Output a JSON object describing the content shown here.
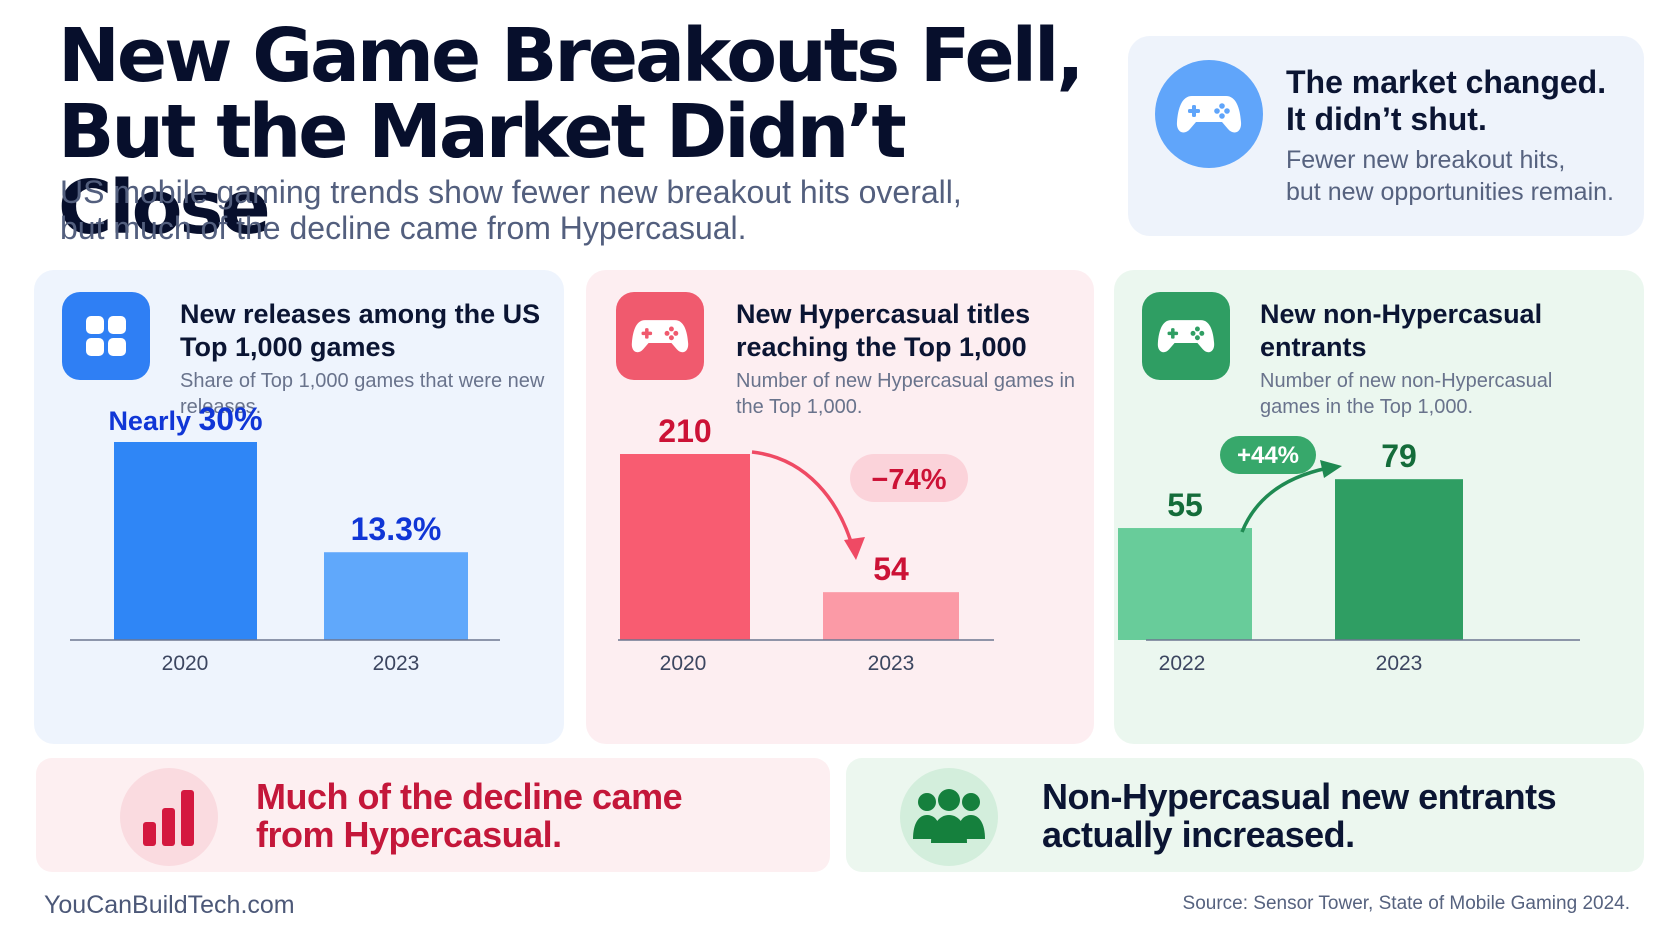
{
  "header": {
    "title_line1": "New Game Breakouts Fell,",
    "title_line2": "But the Market Didn’t Close",
    "subtitle_line1": "US mobile gaming trends show fewer new breakout hits overall,",
    "subtitle_line2": "but much of the decline came from Hypercasual."
  },
  "callout": {
    "icon": "gamepad-icon",
    "headline_line1": "The market changed.",
    "headline_line2": "It didn’t shut.",
    "text_line1": "Fewer new breakout hits,",
    "text_line2": "but new opportunities remain."
  },
  "cards": [
    {
      "icon": "grid-apps-icon",
      "title": "New releases among the US Top 1,000 games",
      "description": "Share of Top 1,000 games that were new releases."
    },
    {
      "icon": "gamepad-icon",
      "title": "New Hypercasual titles reaching the Top 1,000",
      "description": "Number of new Hypercasual games in the Top 1,000."
    },
    {
      "icon": "gamepad-icon",
      "title": "New non-Hypercasual entrants",
      "description": "Number of new non-Hypercasual games in the Top 1,000."
    }
  ],
  "chart_data": [
    {
      "type": "bar",
      "categories": [
        "2020",
        "2023"
      ],
      "values": [
        30,
        13.3
      ],
      "data_labels": [
        "Nearly 30%",
        "13.3%"
      ],
      "ylim": [
        0,
        30
      ],
      "colors": [
        "#2f86f6",
        "#60a8fb"
      ],
      "label_color": "#1036d6",
      "title": "New releases among the US Top 1,000 games",
      "xlabel": "",
      "ylabel": "",
      "grid": false
    },
    {
      "type": "bar",
      "categories": [
        "2020",
        "2023"
      ],
      "values": [
        210,
        54
      ],
      "data_labels": [
        "210",
        "54"
      ],
      "change_label": "−74%",
      "ylim": [
        0,
        210
      ],
      "colors": [
        "#f85c71",
        "#fb9aa6"
      ],
      "label_color": "#cc1236",
      "title": "New Hypercasual titles reaching the Top 1,000",
      "xlabel": "",
      "ylabel": "",
      "grid": false
    },
    {
      "type": "bar",
      "categories": [
        "2022",
        "2023"
      ],
      "values": [
        55,
        79
      ],
      "data_labels": [
        "55",
        "79"
      ],
      "change_label": "+44%",
      "ylim": [
        0,
        112
      ],
      "colors": [
        "#68cc9a",
        "#2f9e63"
      ],
      "label_color": "#146c3a",
      "title": "New non-Hypercasual entrants",
      "xlabel": "",
      "ylabel": "",
      "grid": false
    }
  ],
  "takeaways": {
    "left": {
      "icon": "bar-chart-icon",
      "line1": "Much of the decline came",
      "line2": "from Hypercasual."
    },
    "right": {
      "icon": "people-group-icon",
      "line1": "Non-Hypercasual new entrants",
      "line2": "actually increased."
    }
  },
  "footer": {
    "site": "YouCanBuildTech.com",
    "source": "Source: Sensor Tower, State of Mobile Gaming 2024."
  }
}
